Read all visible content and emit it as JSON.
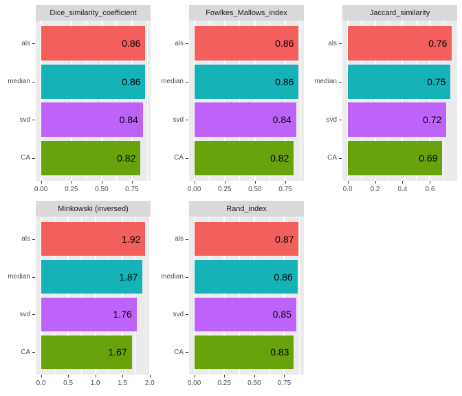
{
  "figure": {
    "background": "#FFFFFF",
    "panel_background": "#EBEBEB",
    "strip_background": "#D9D9D9",
    "grid_color": "#FFFFFF",
    "axis_text_color": "#4D4D4D",
    "tick_mark_color": "#333333",
    "value_label_color": "#000000"
  },
  "bar_colors": {
    "als": "#F25F5C",
    "median": "#15B3B7",
    "svd": "#BE63FA",
    "CA": "#68A30B"
  },
  "chart_data": [
    {
      "type": "bar",
      "orientation": "horizontal",
      "title": "Dice_similarity_coefficient",
      "categories": [
        "als",
        "median",
        "svd",
        "CA"
      ],
      "values": [
        0.86,
        0.86,
        0.84,
        0.82
      ],
      "value_labels": [
        "0.86",
        "0.86",
        "0.84",
        "0.82"
      ],
      "x_tick_values": [
        0,
        0.25,
        0.5,
        0.75
      ],
      "x_tick_labels": [
        "0.00",
        "0.25",
        "0.50",
        "0.75"
      ],
      "xlim": [
        -0.043,
        0.903
      ],
      "grid": true,
      "legend": "none"
    },
    {
      "type": "bar",
      "orientation": "horizontal",
      "title": "Fowlkes_Mallows_index",
      "categories": [
        "als",
        "median",
        "svd",
        "CA"
      ],
      "values": [
        0.86,
        0.86,
        0.84,
        0.82
      ],
      "value_labels": [
        "0.86",
        "0.86",
        "0.84",
        "0.82"
      ],
      "x_tick_values": [
        0,
        0.25,
        0.5,
        0.75
      ],
      "x_tick_labels": [
        "0.00",
        "0.25",
        "0.50",
        "0.75"
      ],
      "xlim": [
        -0.043,
        0.903
      ],
      "grid": true,
      "legend": "none"
    },
    {
      "type": "bar",
      "orientation": "horizontal",
      "title": "Jaccard_similarity",
      "categories": [
        "als",
        "median",
        "svd",
        "CA"
      ],
      "values": [
        0.76,
        0.75,
        0.72,
        0.69
      ],
      "value_labels": [
        "0.76",
        "0.75",
        "0.72",
        "0.69"
      ],
      "x_tick_values": [
        0,
        0.2,
        0.4,
        0.6
      ],
      "x_tick_labels": [
        "0.0",
        "0.2",
        "0.4",
        "0.6"
      ],
      "xlim": [
        -0.038,
        0.798
      ],
      "grid": true,
      "legend": "none"
    },
    {
      "type": "bar",
      "orientation": "horizontal",
      "title": "Minkowski (inversed)",
      "categories": [
        "als",
        "median",
        "svd",
        "CA"
      ],
      "values": [
        1.92,
        1.87,
        1.76,
        1.67
      ],
      "value_labels": [
        "1.92",
        "1.87",
        "1.76",
        "1.67"
      ],
      "x_tick_values": [
        0,
        0.5,
        1,
        1.5,
        2
      ],
      "x_tick_labels": [
        "0.0",
        "0.5",
        "1.0",
        "1.5",
        "2.0"
      ],
      "xlim": [
        -0.096,
        2.016
      ],
      "grid": true,
      "legend": "none"
    },
    {
      "type": "bar",
      "orientation": "horizontal",
      "title": "Rand_index",
      "categories": [
        "als",
        "median",
        "svd",
        "CA"
      ],
      "values": [
        0.87,
        0.86,
        0.85,
        0.83
      ],
      "value_labels": [
        "0.87",
        "0.86",
        "0.85",
        "0.83"
      ],
      "x_tick_values": [
        0,
        0.25,
        0.5,
        0.75
      ],
      "x_tick_labels": [
        "0.00",
        "0.25",
        "0.50",
        "0.75"
      ],
      "xlim": [
        -0.0435,
        0.9135
      ],
      "grid": true,
      "legend": "none"
    }
  ]
}
